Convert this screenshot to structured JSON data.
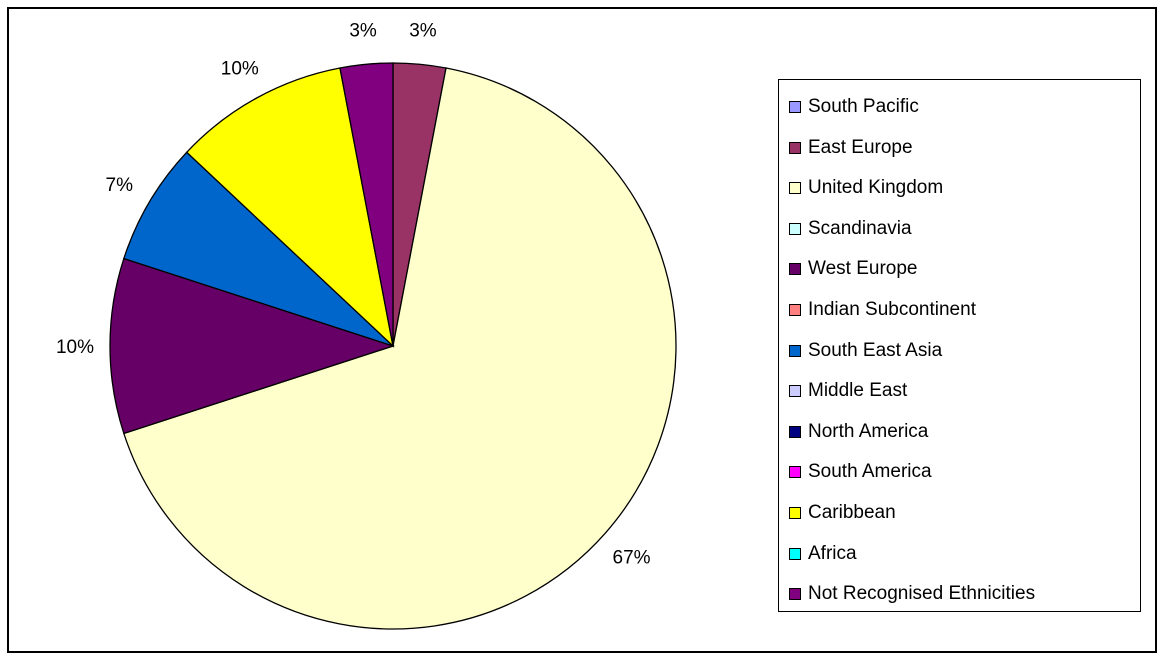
{
  "chart_data": {
    "type": "pie",
    "title": "",
    "legend_position": "right",
    "slices": [
      {
        "name": "South Pacific",
        "value": 0,
        "color": "#9999FF"
      },
      {
        "name": "East Europe",
        "value": 3,
        "color": "#993366"
      },
      {
        "name": "United Kingdom",
        "value": 67,
        "color": "#FFFFCC"
      },
      {
        "name": "Scandinavia",
        "value": 0,
        "color": "#CCFFFF"
      },
      {
        "name": "West Europe",
        "value": 10,
        "color": "#660066"
      },
      {
        "name": "Indian Subcontinent",
        "value": 0,
        "color": "#FF8080"
      },
      {
        "name": "South East Asia",
        "value": 7,
        "color": "#0066CC"
      },
      {
        "name": "Middle East",
        "value": 0,
        "color": "#CCCCFF"
      },
      {
        "name": "North America",
        "value": 0,
        "color": "#000080"
      },
      {
        "name": "South America",
        "value": 0,
        "color": "#FF00FF"
      },
      {
        "name": "Caribbean",
        "value": 10,
        "color": "#FFFF00"
      },
      {
        "name": "Africa",
        "value": 0,
        "color": "#00FFFF"
      },
      {
        "name": "Not Recognised Ethnicities",
        "value": 3,
        "color": "#800080"
      }
    ],
    "data_labels": [
      "3%",
      "67%",
      "10%",
      "7%",
      "10%",
      "3%"
    ]
  }
}
